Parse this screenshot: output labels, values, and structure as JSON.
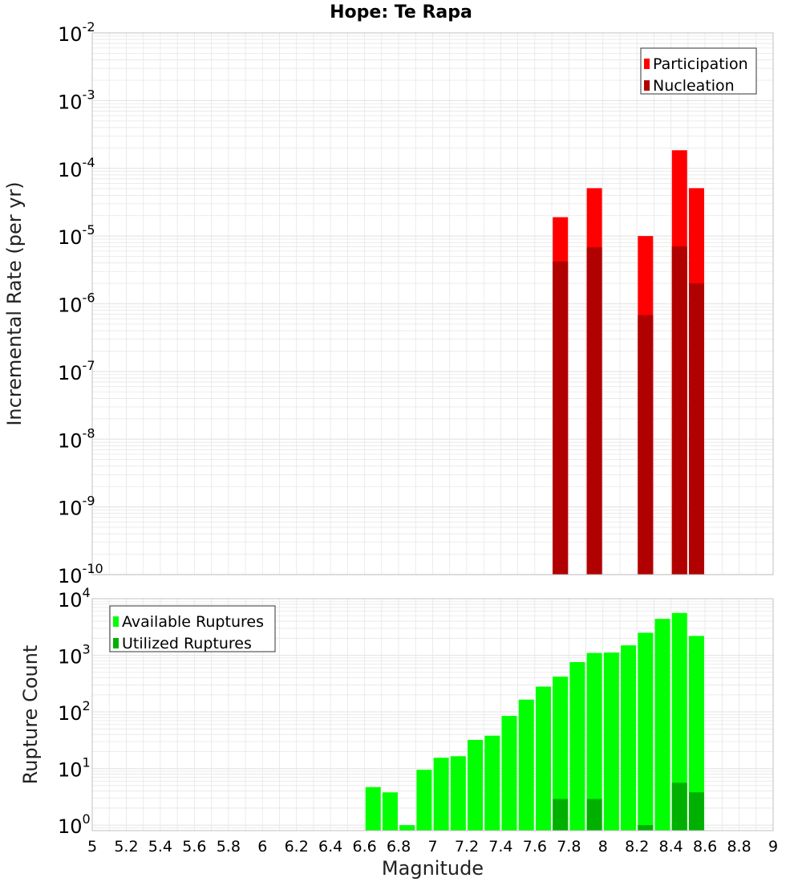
{
  "title": "Hope: Te Rapa",
  "colors": {
    "participation": "#ff0000",
    "nucleation": "#b00000",
    "available": "#00ff00",
    "utilized": "#00b000",
    "grid": "#e6e6e6",
    "axis_border": "#c0c0c0"
  },
  "chart_data": [
    {
      "type": "bar",
      "scale": "log",
      "ylabel": "Incremental Rate (per yr)",
      "ylim": [
        1e-10,
        0.01
      ],
      "y_ticks": [
        {
          "base": "10",
          "exp": "-10",
          "value": 1e-10
        },
        {
          "base": "10",
          "exp": "-9",
          "value": 1e-09
        },
        {
          "base": "10",
          "exp": "-8",
          "value": 1e-08
        },
        {
          "base": "10",
          "exp": "-7",
          "value": 1e-07
        },
        {
          "base": "10",
          "exp": "-6",
          "value": 1e-06
        },
        {
          "base": "10",
          "exp": "-5",
          "value": 1e-05
        },
        {
          "base": "10",
          "exp": "-4",
          "value": 0.0001
        },
        {
          "base": "10",
          "exp": "-3",
          "value": 0.001
        },
        {
          "base": "10",
          "exp": "-2",
          "value": 0.01
        }
      ],
      "legend_position": "top-right",
      "grid": true,
      "series": [
        {
          "name": "Participation",
          "x": [
            7.75,
            7.95,
            8.25,
            8.45,
            8.55
          ],
          "values": [
            1.9e-05,
            5.1e-05,
            1e-05,
            0.000185,
            5.1e-05
          ]
        },
        {
          "name": "Nucleation",
          "x": [
            7.75,
            7.95,
            8.25,
            8.45,
            8.55
          ],
          "values": [
            4.2e-06,
            6.8e-06,
            6.8e-07,
            7e-06,
            2e-06
          ]
        }
      ]
    },
    {
      "type": "bar",
      "scale": "log",
      "xlabel": "Magnitude",
      "ylabel": "Rupture Count",
      "xlim": [
        5,
        9
      ],
      "x_ticks": [
        "5",
        "5.2",
        "5.4",
        "5.6",
        "5.8",
        "6",
        "6.2",
        "6.4",
        "6.6",
        "6.8",
        "7",
        "7.2",
        "7.4",
        "7.6",
        "7.8",
        "8",
        "8.2",
        "8.4",
        "8.6",
        "8.8",
        "9"
      ],
      "ylim": [
        0.8,
        10000
      ],
      "y_ticks": [
        {
          "base": "10",
          "exp": "0",
          "value": 1
        },
        {
          "base": "10",
          "exp": "1",
          "value": 10
        },
        {
          "base": "10",
          "exp": "2",
          "value": 100
        },
        {
          "base": "10",
          "exp": "3",
          "value": 1000
        },
        {
          "base": "10",
          "exp": "4",
          "value": 10000
        }
      ],
      "legend_position": "top-left",
      "grid": true,
      "series": [
        {
          "name": "Available Ruptures",
          "x": [
            6.65,
            6.75,
            6.85,
            6.95,
            7.05,
            7.15,
            7.25,
            7.35,
            7.45,
            7.55,
            7.65,
            7.75,
            7.85,
            7.95,
            8.05,
            8.15,
            8.25,
            8.35,
            8.45,
            8.55
          ],
          "values": [
            4.7,
            3.8,
            1.0,
            9.5,
            15.5,
            16.5,
            32,
            38,
            85,
            165,
            280,
            420,
            760,
            1100,
            1120,
            1500,
            2500,
            4400,
            5600,
            2200
          ]
        },
        {
          "name": "Utilized Ruptures",
          "x": [
            7.75,
            7.95,
            8.25,
            8.45,
            8.55
          ],
          "values": [
            2.9,
            2.9,
            1.0,
            5.6,
            3.8
          ]
        }
      ]
    }
  ]
}
